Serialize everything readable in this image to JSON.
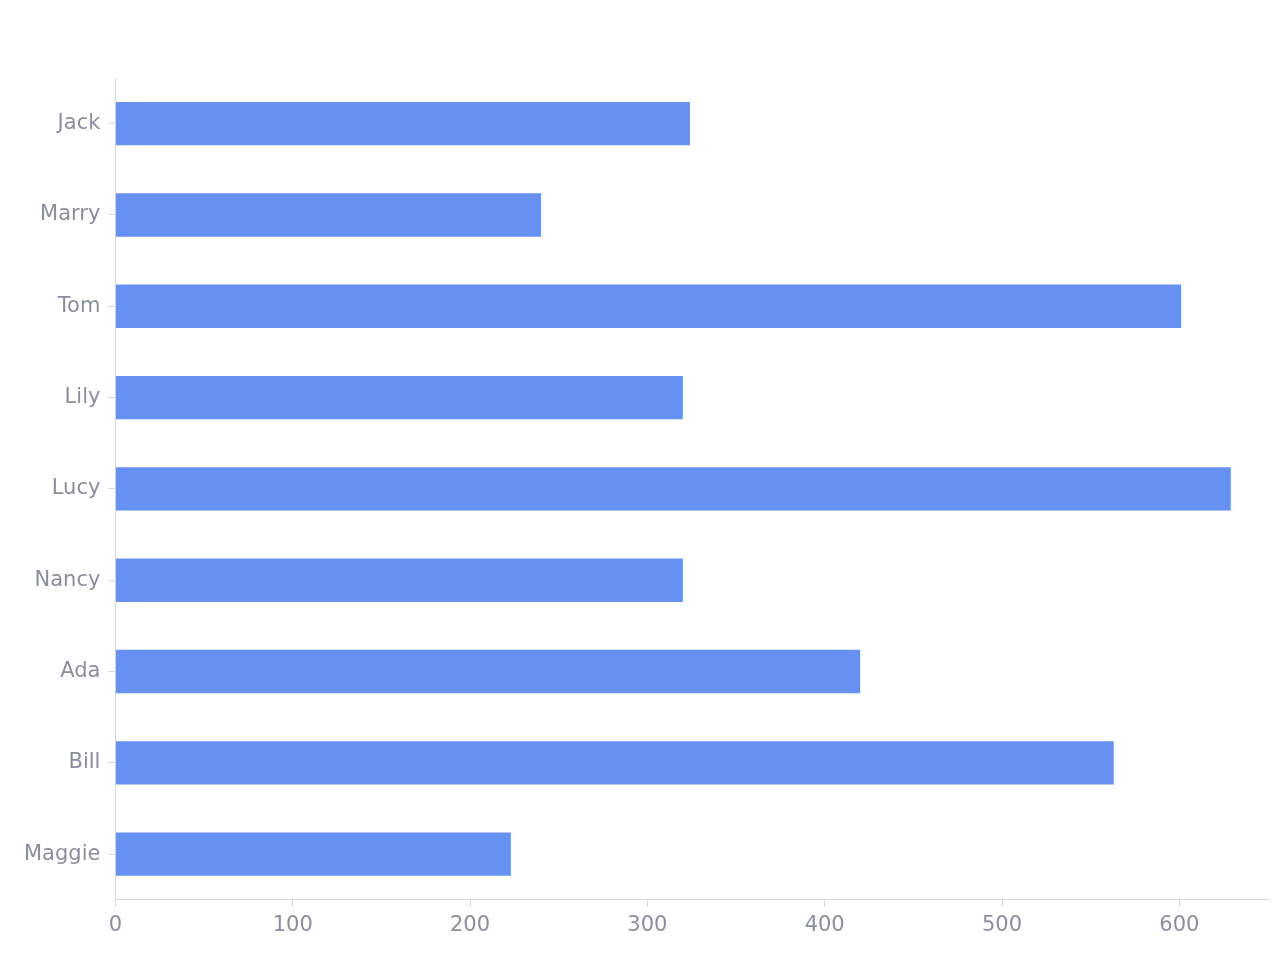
{
  "chart_data": {
    "type": "bar",
    "orientation": "horizontal",
    "categories": [
      "Jack",
      "Marry",
      "Tom",
      "Lily",
      "Lucy",
      "Nancy",
      "Ada",
      "Bill",
      "Maggie"
    ],
    "values": [
      324,
      240,
      601,
      320,
      629,
      320,
      420,
      563,
      223
    ],
    "color": "#6690f2",
    "xlim": [
      0,
      650
    ],
    "xticks": [
      0,
      100,
      200,
      300,
      400,
      500,
      600
    ]
  }
}
